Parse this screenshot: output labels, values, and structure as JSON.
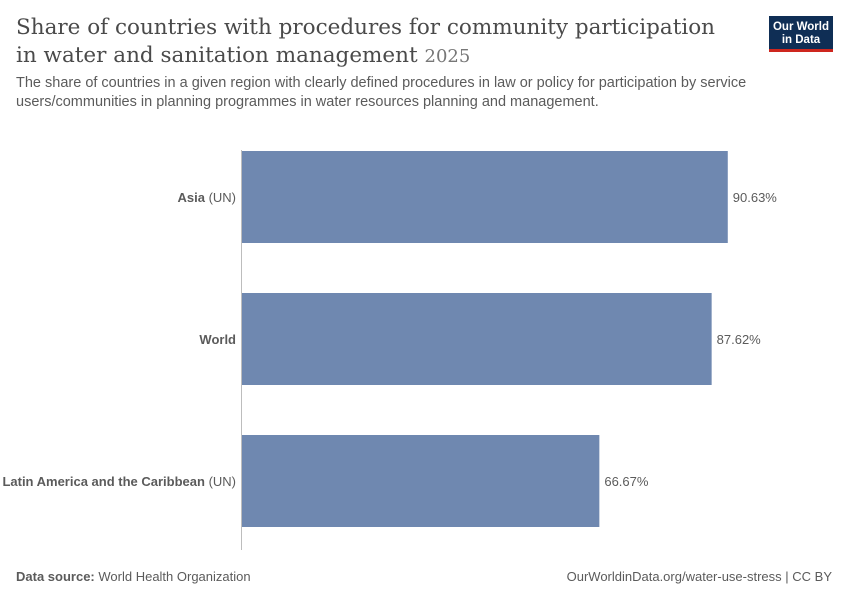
{
  "header": {
    "title": "Share of countries with procedures for community participation in water and sanitation management",
    "year": "2025",
    "subtitle": "The share of countries in a given region with clearly defined procedures in law or policy for participation by service users/communities in planning programmes in water resources planning and management."
  },
  "logo": {
    "line1": "Our World",
    "line2": "in Data",
    "bg_color": "#0f2e55",
    "accent_color": "#ce261e"
  },
  "footer": {
    "source_label": "Data source:",
    "source": "World Health Organization",
    "url": "OurWorldinData.org/water-use-stress | CC BY"
  },
  "chart_data": {
    "type": "bar",
    "orientation": "horizontal",
    "unit": "%",
    "bar_color": "#6f88b0",
    "xlim": [
      0,
      100
    ],
    "grid": false,
    "categories": [
      {
        "name": "Asia",
        "qualifier": "(UN)",
        "value": 90.63,
        "label": "90.63%"
      },
      {
        "name": "World",
        "qualifier": "",
        "value": 87.62,
        "label": "87.62%"
      },
      {
        "name": "Latin America and the Caribbean",
        "qualifier": "(UN)",
        "value": 66.67,
        "label": "66.67%"
      }
    ]
  }
}
